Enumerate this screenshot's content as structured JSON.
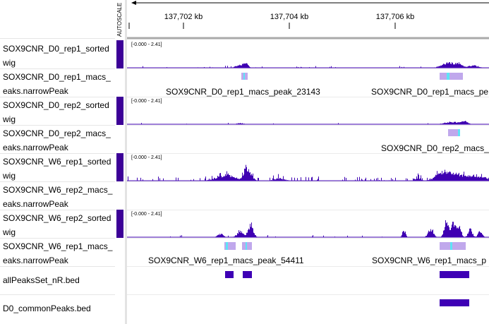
{
  "colors": {
    "signal": "#3f00b2",
    "narrowpeak_bar": "#c0a8ec",
    "narrowpeak_summit": "#5ee3f5",
    "bed": "#3e00b5",
    "attribute": "#3c0097"
  },
  "header": {
    "autoscale_label": "AUTOSCALE",
    "ticks": [
      {
        "label": "137,702 kb",
        "pos_kb": 137702
      },
      {
        "label": "137,704 kb",
        "pos_kb": 137704
      },
      {
        "label": "137,706 kb",
        "pos_kb": 137706
      }
    ]
  },
  "tracks": [
    {
      "name": "SOX9CNR_D0_rep1_sorted\nwig",
      "type": "signal",
      "range": "[-0.000 - 2.41]"
    },
    {
      "name": "SOX9CNR_D0_rep1_macs_\neaks.narrowPeak",
      "type": "narrowPeak",
      "peak_labels": [
        "SOX9CNR_D0_rep1_macs_peak_23143",
        "SOX9CNR_D0_rep1_macs_pe"
      ]
    },
    {
      "name": "SOX9CNR_D0_rep2_sorted\nwig",
      "type": "signal",
      "range": "[-0.000 - 2.41]"
    },
    {
      "name": "SOX9CNR_D0_rep2_macs_\neaks.narrowPeak",
      "type": "narrowPeak",
      "peak_labels": [
        "SOX9CNR_D0_rep2_macs_"
      ]
    },
    {
      "name": "SOX9CNR_W6_rep1_sorted\nwig",
      "type": "signal",
      "range": "[-0.000 - 2.41]"
    },
    {
      "name": "SOX9CNR_W6_rep2_macs_\neaks.narrowPeak",
      "type": "narrowPeak",
      "peak_labels": []
    },
    {
      "name": "SOX9CNR_W6_rep2_sorted\nwig",
      "type": "signal",
      "range": "[-0.000 - 2.41]"
    },
    {
      "name": "SOX9CNR_W6_rep1_macs_\neaks.narrowPeak",
      "type": "narrowPeak",
      "peak_labels": [
        "SOX9CNR_W6_rep1_macs_peak_54411",
        "SOX9CNR_W6_rep1_macs_p"
      ]
    },
    {
      "name": "allPeaksSet_nR.bed",
      "type": "bed"
    },
    {
      "name": "D0_commonPeaks.bed",
      "type": "bed"
    }
  ]
}
